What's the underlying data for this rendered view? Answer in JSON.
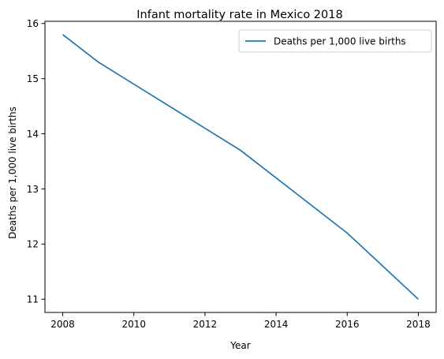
{
  "chart_data": {
    "type": "line",
    "title": "Infant mortality rate in Mexico 2018",
    "xlabel": "Year",
    "ylabel": "Deaths per 1,000 live births",
    "x": [
      2008,
      2009,
      2010,
      2011,
      2012,
      2013,
      2014,
      2015,
      2016,
      2017,
      2018
    ],
    "series": [
      {
        "name": "Deaths per 1,000 live births",
        "color": "#1f77b4",
        "values": [
          15.8,
          15.3,
          14.9,
          14.5,
          14.1,
          13.7,
          13.2,
          12.7,
          12.2,
          11.6,
          11.0
        ]
      }
    ],
    "xlim": [
      2007.5,
      2018.5
    ],
    "ylim": [
      10.76,
      16.04
    ],
    "xticks": [
      2008,
      2010,
      2012,
      2014,
      2016,
      2018
    ],
    "yticks": [
      11,
      12,
      13,
      14,
      15,
      16
    ],
    "grid": false,
    "legend_position": "top-right"
  }
}
